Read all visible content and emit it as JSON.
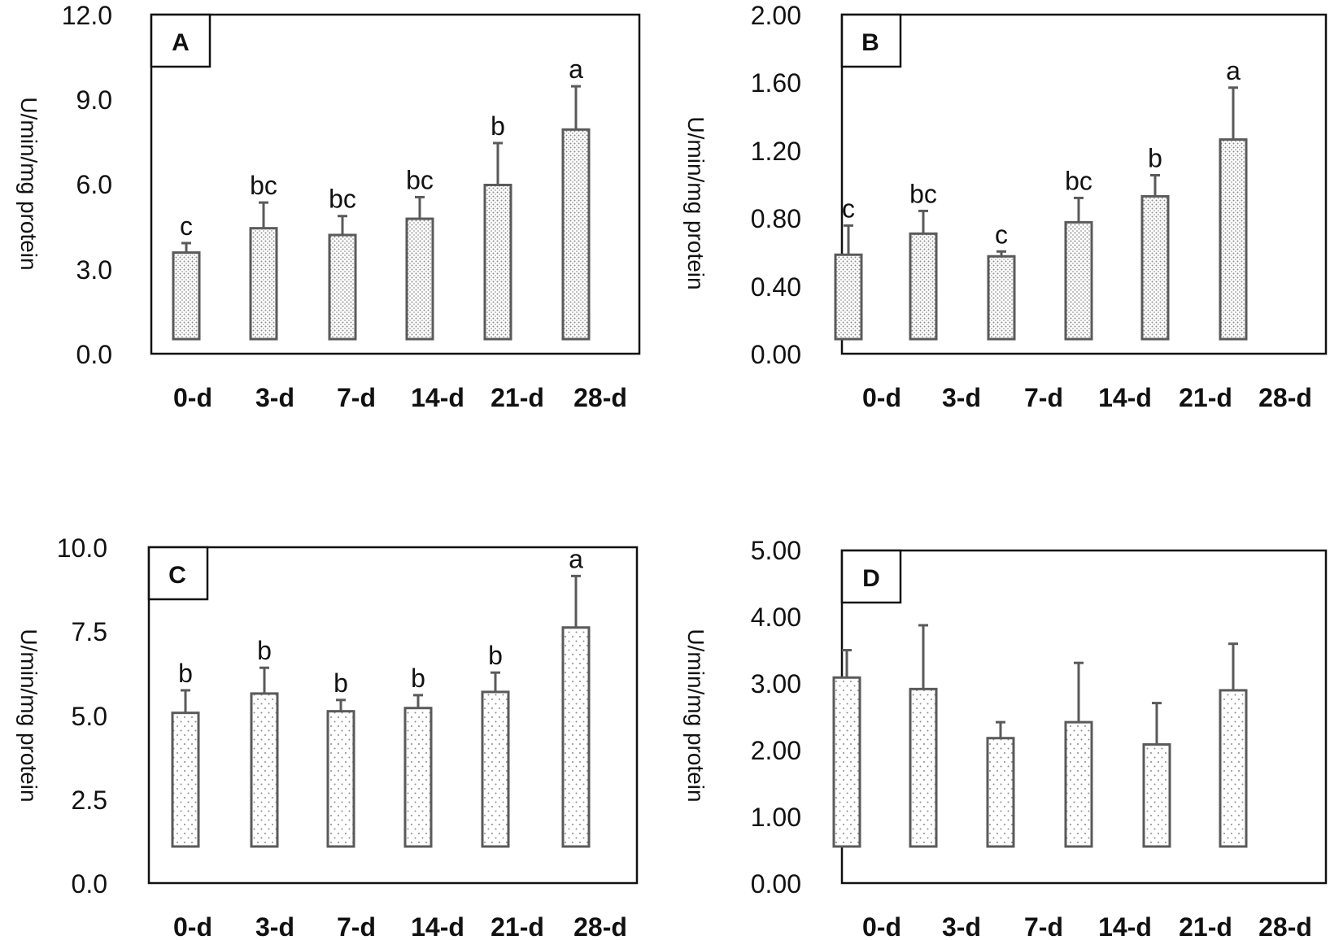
{
  "chart_data": [
    {
      "type": "bar",
      "panel_label": "A",
      "categories": [
        "0-d",
        "3-d",
        "7-d",
        "14-d",
        "21-d",
        "28-d"
      ],
      "values": [
        3.2,
        4.1,
        3.85,
        4.45,
        5.7,
        7.75
      ],
      "errors": [
        0.35,
        0.95,
        0.7,
        0.8,
        1.55,
        1.6
      ],
      "significance": [
        "c",
        "bc",
        "bc",
        "bc",
        "b",
        "a"
      ],
      "ylabel": "U/min/mg protein",
      "ylim": [
        0,
        12
      ],
      "yticks": [
        "0.0",
        "3.0",
        "6.0",
        "9.0",
        "12.0"
      ],
      "bar_pattern": "dense-dots",
      "grid": false
    },
    {
      "type": "bar",
      "panel_label": "B",
      "categories": [
        "0-d",
        "3-d",
        "7-d",
        "14-d",
        "21-d",
        "28-d"
      ],
      "values": [
        0.52,
        0.65,
        0.51,
        0.72,
        0.88,
        1.23
      ],
      "errors": [
        0.18,
        0.14,
        0.03,
        0.15,
        0.13,
        0.32
      ],
      "significance": [
        "c",
        "bc",
        "c",
        "bc",
        "b",
        "a"
      ],
      "ylabel": "U/min/mg protein",
      "ylim": [
        0,
        2
      ],
      "yticks": [
        "0.00",
        "0.40",
        "0.80",
        "1.20",
        "1.60",
        "2.00"
      ],
      "bar_pattern": "dense-dots",
      "grid": false
    },
    {
      "type": "bar",
      "panel_label": "C",
      "categories": [
        "0-d",
        "3-d",
        "7-d",
        "14-d",
        "21-d",
        "28-d"
      ],
      "values": [
        4.15,
        4.75,
        4.2,
        4.3,
        4.8,
        6.8
      ],
      "errors": [
        0.7,
        0.8,
        0.35,
        0.4,
        0.6,
        1.6
      ],
      "significance": [
        "b",
        "b",
        "b",
        "b",
        "b",
        "a"
      ],
      "ylabel": "U/min/mg protein",
      "ylim": [
        0,
        10
      ],
      "yticks": [
        "0.0",
        "2.5",
        "5.0",
        "7.5",
        "10.0"
      ],
      "bar_pattern": "sparse-dots",
      "grid": false
    },
    {
      "type": "bar",
      "panel_label": "D",
      "categories": [
        "0-d",
        "3-d",
        "7-d",
        "14-d",
        "21-d",
        "28-d"
      ],
      "values": [
        2.65,
        2.47,
        1.7,
        1.95,
        1.6,
        2.45
      ],
      "errors": [
        0.43,
        1.0,
        0.25,
        0.93,
        0.65,
        0.73
      ],
      "significance": [
        "",
        "",
        "",
        "",
        "",
        ""
      ],
      "ylabel": "U/min/mg protein",
      "ylim": [
        0,
        5
      ],
      "yticks": [
        "0.00",
        "1.00",
        "2.00",
        "3.00",
        "4.00",
        "5.00"
      ],
      "bar_pattern": "sparse-dots",
      "grid": false
    }
  ],
  "colors": {
    "axis": "#111111",
    "bar_outline": "#5a5a5a",
    "bar_fill": "#ffffff",
    "dots": "#8a8a8a"
  }
}
